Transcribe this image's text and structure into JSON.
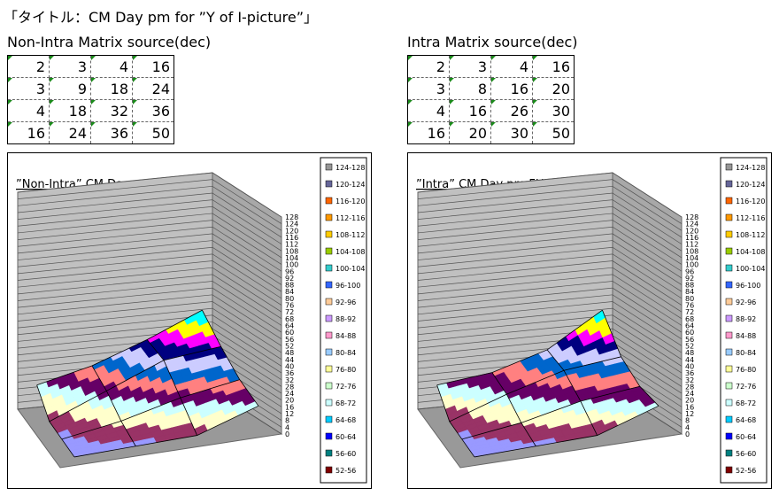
{
  "title": "「タイトル：CM Day pm for ”Y of I-picture”」",
  "tables": [
    {
      "caption": "Non-Intra Matrix source(dec)",
      "rows": [
        [
          2,
          3,
          4,
          16
        ],
        [
          3,
          9,
          18,
          24
        ],
        [
          4,
          18,
          32,
          36
        ],
        [
          16,
          24,
          36,
          50
        ]
      ]
    },
    {
      "caption": "Intra Matrix source(dec)",
      "rows": [
        [
          2,
          3,
          4,
          16
        ],
        [
          3,
          8,
          16,
          20
        ],
        [
          4,
          16,
          26,
          30
        ],
        [
          16,
          20,
          30,
          50
        ]
      ]
    }
  ],
  "chart_data": [
    {
      "type": "surface",
      "title": "”Non-Intra” CM Day pm FHD-I(Y)",
      "zlim": [
        0,
        128
      ],
      "zticks": [
        0,
        4,
        8,
        12,
        16,
        20,
        24,
        28,
        32,
        36,
        40,
        44,
        48,
        52,
        56,
        60,
        64,
        68,
        72,
        76,
        80,
        84,
        88,
        92,
        96,
        100,
        104,
        108,
        112,
        116,
        120,
        124,
        128
      ],
      "legend": [
        "124-128",
        "120-124",
        "116-120",
        "112-116",
        "108-112",
        "104-108",
        "100-104",
        "96-100",
        "92-96",
        "88-92",
        "84-88",
        "80-84",
        "76-80",
        "72-76",
        "68-72",
        "64-68",
        "60-64",
        "56-60",
        "52-56"
      ],
      "colors": [
        "#9999ff",
        "#993366",
        "#ffffcc",
        "#ccffff",
        "#660066",
        "#ff8080",
        "#0066cc",
        "#ccccff",
        "#000080",
        "#ff00ff",
        "#ffff00",
        "#00ffff",
        "#800080",
        "#800000",
        "#008080",
        "#0000ff",
        "#00ccff",
        "#ccffff",
        "#ccffcc",
        "#ffff99",
        "#99ccff",
        "#ff99cc",
        "#cc99ff",
        "#ffcc99",
        "#3366ff",
        "#33cccc",
        "#99cc00",
        "#ffcc00",
        "#ff9900",
        "#ff6600",
        "#666699",
        "#969696"
      ]
    },
    {
      "type": "surface",
      "title": "”Intra” CM Day pm FHD-I(Y)",
      "zlim": [
        0,
        128
      ],
      "zticks": [
        0,
        4,
        8,
        12,
        16,
        20,
        24,
        28,
        32,
        36,
        40,
        44,
        48,
        52,
        56,
        60,
        64,
        68,
        72,
        76,
        80,
        84,
        88,
        92,
        96,
        100,
        104,
        108,
        112,
        116,
        120,
        124,
        128
      ],
      "legend": [
        "124-128",
        "120-124",
        "116-120",
        "112-116",
        "108-112",
        "104-108",
        "100-104",
        "96-100",
        "92-96",
        "88-92",
        "84-88",
        "80-84",
        "76-80",
        "72-76",
        "68-72",
        "64-68",
        "60-64",
        "56-60",
        "52-56"
      ],
      "colors": [
        "#9999ff",
        "#993366",
        "#ffffcc",
        "#ccffff",
        "#660066",
        "#ff8080",
        "#0066cc",
        "#ccccff",
        "#000080",
        "#ff00ff",
        "#ffff00",
        "#00ffff",
        "#800080",
        "#800000",
        "#008080",
        "#0000ff",
        "#00ccff",
        "#ccffff",
        "#ccffcc",
        "#ffff99",
        "#99ccff",
        "#ff99cc",
        "#cc99ff",
        "#ffcc99",
        "#3366ff",
        "#33cccc",
        "#99cc00",
        "#ffcc00",
        "#ff9900",
        "#ff6600",
        "#666699",
        "#969696"
      ]
    }
  ]
}
